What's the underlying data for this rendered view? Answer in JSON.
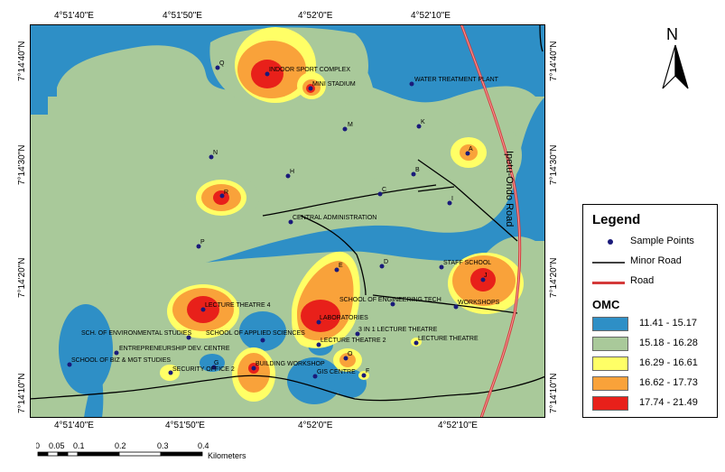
{
  "coords": {
    "top": [
      "4°51'40\"E",
      "4°51'50\"E",
      "4°52'0\"E",
      "4°52'10\"E"
    ],
    "bottom": [
      "4°51'40\"E",
      "4°51'50\"E",
      "4°52'0\"E",
      "4°52'10\"E"
    ],
    "left": [
      "7°14'40\"N",
      "7°14'30\"N",
      "7°14'20\"N",
      "7°14'10\"N"
    ],
    "right": [
      "7°14'40\"N",
      "7°14'30\"N",
      "7°14'20\"N",
      "7°14'10\"N"
    ]
  },
  "north_label": "N",
  "road_label": "Ipetu-Ondo Road",
  "places": {
    "indoor": "INDOOR SPORT COMPLEX",
    "stadium": "MINI STADIUM",
    "water": "WATER TREATMENT PLANT",
    "central": "CENTRAL ADMINISTRATION",
    "staff": "STAFF SCHOOL",
    "engtech": "SCHOOL OF ENGINEERING TECH",
    "workshops": "WORKSHOPS",
    "lt4": "LECTURE THEATRE 4",
    "labs": "LABORATORIES",
    "env": "SCH. OF ENVIRONMENTAL STUDIES",
    "appsci": "SCHOOL OF APPLIED SCIENCES",
    "three": "3 IN 1 LECTURE THEATRE",
    "lt2": "LECTURE THEATRE 2",
    "lt": "LECTURE THEATRE",
    "entre": "ENTREPRENEURSHIP DEV. CENTRE",
    "biz": "SCHOOL OF BIZ & MGT STUDIES",
    "security": "SECURITY OFFICE 2",
    "building": "BUILDING WORKSHOP",
    "gis": "GIS CENTRE"
  },
  "points": {
    "Q": "Q",
    "M": "M",
    "K": "K",
    "A": "A",
    "N": "N",
    "H": "H",
    "B": "B",
    "R": "R",
    "C": "C",
    "I": "I",
    "P": "P",
    "E": "E",
    "D": "D",
    "J": "J",
    "G": "G",
    "O": "O",
    "F": "F"
  },
  "legend": {
    "title": "Legend",
    "sample_points": "Sample Points",
    "minor_road": "Minor Road",
    "road": "Road",
    "omc_title": "OMC",
    "classes": [
      {
        "label": "11.41 - 15.17",
        "color": "#2e8fc6"
      },
      {
        "label": "15.18 - 16.28",
        "color": "#a9c99a"
      },
      {
        "label": "16.29 - 16.61",
        "color": "#ffff66"
      },
      {
        "label": "16.62 - 17.73",
        "color": "#f9a23a"
      },
      {
        "label": "17.74 - 21.49",
        "color": "#e8201a"
      }
    ]
  },
  "scale": {
    "ticks": [
      "0",
      "0.05",
      "0.1",
      "0.2",
      "0.3",
      "0.4"
    ],
    "unit": "Kilometers"
  }
}
